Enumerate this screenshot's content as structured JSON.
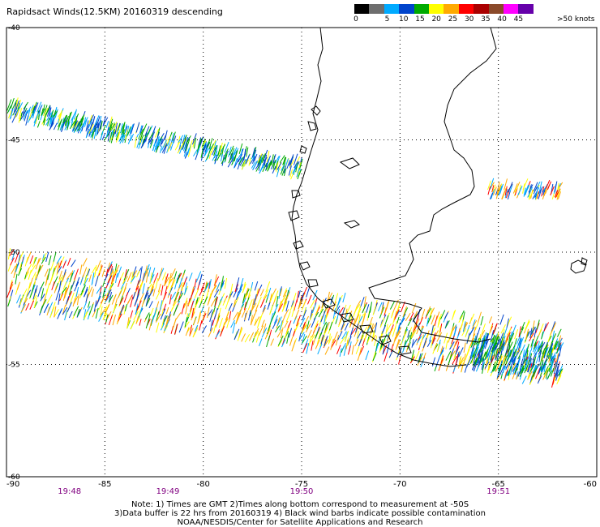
{
  "title": "Rapidsact Winds(12.5KM) 20160319 descending",
  "legend": {
    "colors": [
      "#000000",
      "#6e6e6e",
      "#00aaff",
      "#0044cc",
      "#00aa00",
      "#ffff00",
      "#ffaa00",
      "#ff0000",
      "#aa0000",
      "#8a4a2a",
      "#ff00ff",
      "#6600aa"
    ],
    "labels": [
      "0",
      "5",
      "10",
      "15",
      "20",
      "25",
      "30",
      "35",
      "40",
      "45",
      ">50 knots"
    ]
  },
  "map": {
    "lon_min": -90,
    "lon_max": -60,
    "lat_min": -60,
    "lat_max": -40,
    "lat_labels": [
      "-40",
      "-45",
      "-50",
      "-55",
      "-60"
    ],
    "lat_values": [
      -40,
      -45,
      -50,
      -55,
      -60
    ],
    "lon_labels": [
      "-90",
      "-85",
      "-80",
      "-75",
      "-70",
      "-65",
      "-60"
    ],
    "lon_values": [
      -90,
      -85,
      -80,
      -75,
      -70,
      -65,
      -60
    ],
    "time_labels": [
      {
        "text": "19:48",
        "lon": -86.8
      },
      {
        "text": "19:49",
        "lon": -81.8
      },
      {
        "text": "19:50",
        "lon": -75.0
      },
      {
        "text": "19:51",
        "lon": -65.0
      }
    ]
  },
  "notes": {
    "line1": "Note: 1) Times are GMT 2)Times along bottom correspond to measurement at -50S",
    "line2": "3)Data buffer is 22 hrs from 20160319 4) Black wind barbs indicate possible contamination",
    "line3": "NOAA/NESDIS/Center for Satellite Applications and Research"
  }
}
